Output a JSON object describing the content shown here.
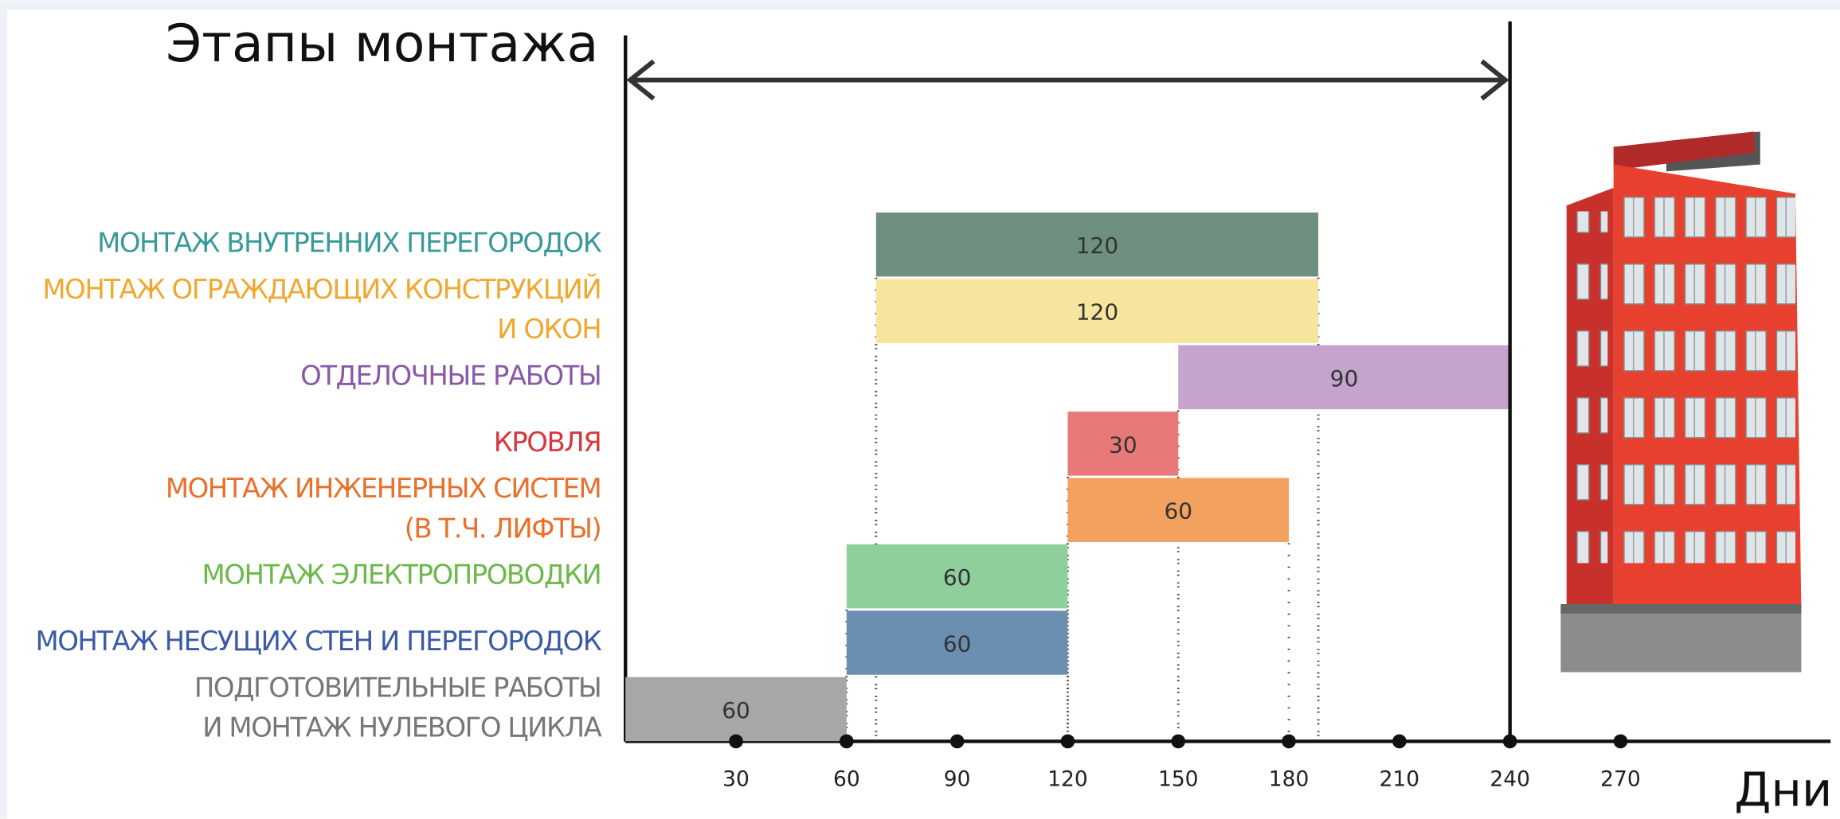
{
  "chart_data": {
    "type": "gantt",
    "title": "Этапы монтажа",
    "x_label": "Дни",
    "tasks": [
      {
        "label": [
          "МОНТАЖ ВНУТРЕННИХ ПЕРЕГОРОДОК"
        ],
        "label_color": "#3a9a9a",
        "color": "#6f8f7f",
        "start": 68,
        "duration": 120
      },
      {
        "label": [
          "МОНТАЖ ОГРАЖДАЮЩИХ КОНСТРУКЦИЙ",
          "И ОКОН"
        ],
        "label_color": "#f0a830",
        "color": "#f6e59c",
        "start": 68,
        "duration": 120
      },
      {
        "label": [
          "ОТДЕЛОЧНЫЕ РАБОТЫ"
        ],
        "label_color": "#8a5aa8",
        "color": "#c4a4cc",
        "start": 150,
        "duration": 90
      },
      {
        "label": [
          "КРОВЛЯ"
        ],
        "label_color": "#d9363e",
        "color": "#e77a78",
        "start": 120,
        "duration": 30
      },
      {
        "label": [
          "МОНТАЖ ИНЖЕНЕРНЫХ СИСТЕМ",
          "(В Т.Ч. ЛИФТЫ)"
        ],
        "label_color": "#e8702a",
        "color": "#f3a15f",
        "start": 120,
        "duration": 60
      },
      {
        "label": [
          "МОНТАЖ ЭЛЕКТРОПРОВОДКИ"
        ],
        "label_color": "#6cb84a",
        "color": "#8fcf9c",
        "start": 60,
        "duration": 60
      },
      {
        "label": [
          "МОНТАЖ НЕСУЩИХ СТЕН И ПЕРЕГОРОДОК"
        ],
        "label_color": "#3a5aa8",
        "color": "#6b8fb0",
        "start": 60,
        "duration": 60
      },
      {
        "label": [
          "ПОДГОТОВИТЕЛЬНЫЕ РАБОТЫ",
          "И МОНТАЖ НУЛЕВОГО ЦИКЛА"
        ],
        "label_color": "#777777",
        "color": "#a7a7a7",
        "start": 0,
        "duration": 60
      }
    ],
    "xlim": [
      0,
      327
    ],
    "xticks": [
      30,
      60,
      90,
      120,
      150,
      180,
      210,
      240,
      270
    ]
  }
}
